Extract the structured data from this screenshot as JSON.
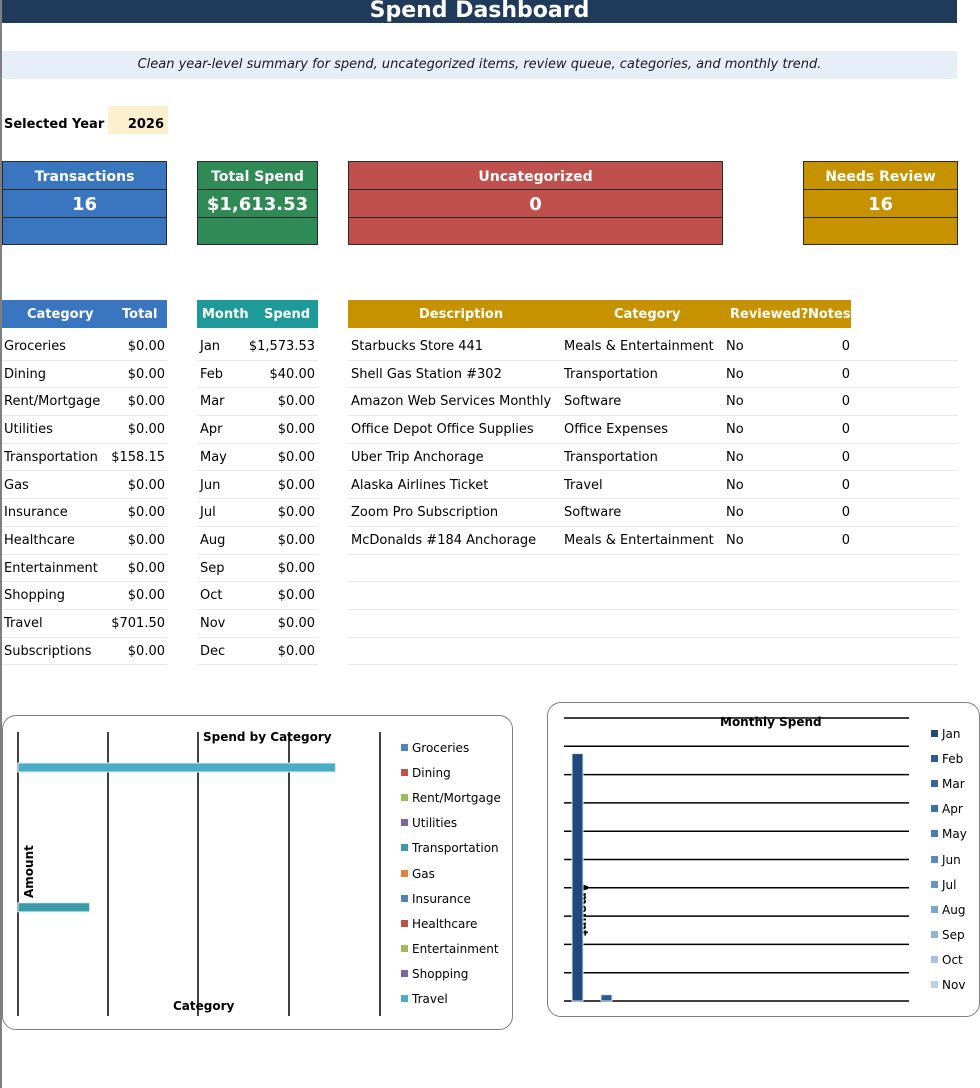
{
  "title": "Spend Dashboard",
  "subtitle": "Clean year-level summary for spend, uncategorized items, review queue, categories, and monthly trend.",
  "selected_year": {
    "label": "Selected Year",
    "value": "2026"
  },
  "kpis": [
    {
      "label": "Transactions",
      "value": "16",
      "color": "#3a76bf"
    },
    {
      "label": "Total Spend",
      "value": "$1,613.53",
      "color": "#2f8a56"
    },
    {
      "label": "Uncategorized",
      "value": "0",
      "color": "#c0504d"
    },
    {
      "label": "Needs Review",
      "value": "16",
      "color": "#c69200"
    }
  ],
  "category_table": {
    "headers": [
      "Category",
      "Total"
    ],
    "header_color": "#3a76bf",
    "rows": [
      [
        "Groceries",
        "$0.00"
      ],
      [
        "Dining",
        "$0.00"
      ],
      [
        "Rent/Mortgage",
        "$0.00"
      ],
      [
        "Utilities",
        "$0.00"
      ],
      [
        "Transportation",
        "$158.15"
      ],
      [
        "Gas",
        "$0.00"
      ],
      [
        "Insurance",
        "$0.00"
      ],
      [
        "Healthcare",
        "$0.00"
      ],
      [
        "Entertainment",
        "$0.00"
      ],
      [
        "Shopping",
        "$0.00"
      ],
      [
        "Travel",
        "$701.50"
      ],
      [
        "Subscriptions",
        "$0.00"
      ]
    ]
  },
  "month_table": {
    "headers": [
      "Month",
      "Spend"
    ],
    "header_color": "#1e9a9a",
    "rows": [
      [
        "Jan",
        "$1,573.53"
      ],
      [
        "Feb",
        "$40.00"
      ],
      [
        "Mar",
        "$0.00"
      ],
      [
        "Apr",
        "$0.00"
      ],
      [
        "May",
        "$0.00"
      ],
      [
        "Jun",
        "$0.00"
      ],
      [
        "Jul",
        "$0.00"
      ],
      [
        "Aug",
        "$0.00"
      ],
      [
        "Sep",
        "$0.00"
      ],
      [
        "Oct",
        "$0.00"
      ],
      [
        "Nov",
        "$0.00"
      ],
      [
        "Dec",
        "$0.00"
      ]
    ]
  },
  "review_table": {
    "headers": [
      "Description",
      "Category",
      "Reviewed?",
      "Notes"
    ],
    "header_color": "#c69200",
    "rows": [
      [
        "Starbucks Store 441",
        "Meals & Entertainment",
        "No",
        "0"
      ],
      [
        "Shell Gas Station #302",
        "Transportation",
        "No",
        "0"
      ],
      [
        "Amazon Web Services Monthly",
        "Software",
        "No",
        "0"
      ],
      [
        "Office Depot Office Supplies",
        "Office Expenses",
        "No",
        "0"
      ],
      [
        "Uber Trip Anchorage",
        "Transportation",
        "No",
        "0"
      ],
      [
        "Alaska Airlines Ticket",
        "Travel",
        "No",
        "0"
      ],
      [
        "Zoom Pro Subscription",
        "Software",
        "No",
        "0"
      ],
      [
        "McDonalds #184 Anchorage",
        "Meals & Entertainment",
        "No",
        "0"
      ]
    ]
  },
  "chart_data": [
    {
      "type": "bar",
      "title": "Spend by Category",
      "xlabel": "Category",
      "ylabel": "Amount",
      "legend_position": "right",
      "categories": [
        "Groceries",
        "Dining",
        "Rent/Mortgage",
        "Utilities",
        "Transportation",
        "Gas",
        "Insurance",
        "Healthcare",
        "Entertainment",
        "Shopping",
        "Travel"
      ],
      "values": [
        0,
        0,
        0,
        0,
        158.15,
        0,
        0,
        0,
        0,
        0,
        701.5
      ],
      "colors": [
        "#4f81bd",
        "#c0504d",
        "#9bbb59",
        "#8064a2",
        "#3a9aaa",
        "#e0833a",
        "#4f81bd",
        "#c0504d",
        "#9bbb59",
        "#8064a2",
        "#4bacc6"
      ],
      "xlim": [
        0,
        800
      ]
    },
    {
      "type": "bar",
      "title": "Monthly Spend",
      "ylabel": "Amount",
      "legend_position": "right",
      "categories": [
        "Jan",
        "Feb",
        "Mar",
        "Apr",
        "May",
        "Jun",
        "Jul",
        "Aug",
        "Sep",
        "Oct",
        "Nov"
      ],
      "values": [
        1573.53,
        40,
        0,
        0,
        0,
        0,
        0,
        0,
        0,
        0,
        0
      ],
      "colors": [
        "#1f497d",
        "#2c5a93",
        "#34659f",
        "#3c70ab",
        "#4a7cb6",
        "#5a88bf",
        "#6a95c7",
        "#7ea3cf",
        "#93b2d7",
        "#a7c1df",
        "#bccfe7"
      ],
      "ylim": [
        0,
        1800
      ]
    }
  ]
}
